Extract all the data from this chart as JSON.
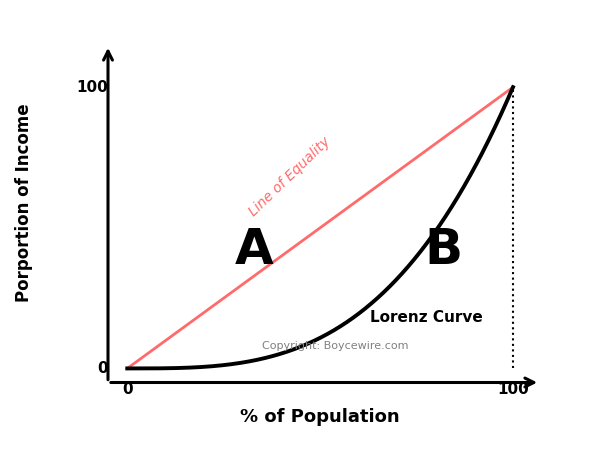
{
  "title": "",
  "xlabel": "% of Population",
  "ylabel": "Porportion of Income",
  "line_of_equality_color": "#FF6B6B",
  "lorenz_curve_color": "#000000",
  "background_color": "#ffffff",
  "label_A": "A",
  "label_B": "B",
  "label_lorenz": "Lorenz Curve",
  "label_equality": "Line of Equality",
  "copyright_text": "Copyright: Boycewire.com",
  "dotted_line_color": "#000000",
  "lorenz_exponent": 3.2,
  "x_min": 0,
  "x_max": 100,
  "y_min": 0,
  "y_max": 100
}
